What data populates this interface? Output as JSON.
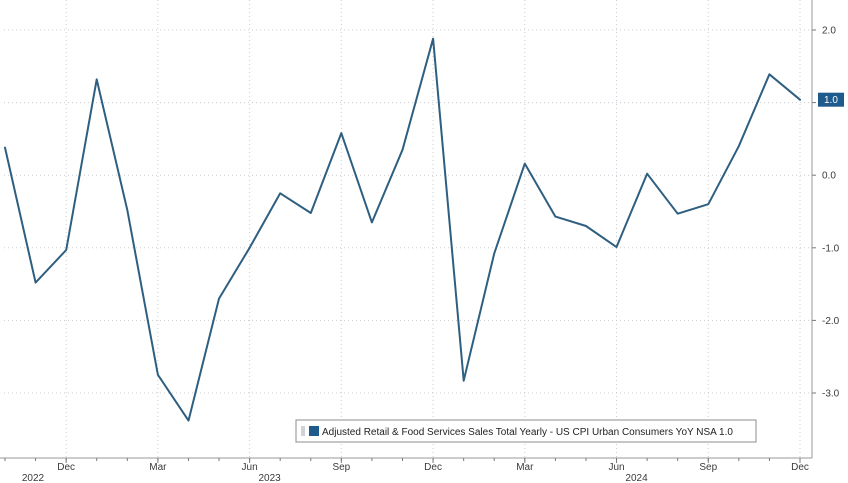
{
  "chart_data": {
    "type": "line",
    "x": [
      "2022-10",
      "2022-11",
      "2022-12",
      "2023-01",
      "2023-02",
      "2023-03",
      "2023-04",
      "2023-05",
      "2023-06",
      "2023-07",
      "2023-08",
      "2023-09",
      "2023-10",
      "2023-11",
      "2023-12",
      "2024-01",
      "2024-02",
      "2024-03",
      "2024-04",
      "2024-05",
      "2024-06",
      "2024-07",
      "2024-08",
      "2024-09",
      "2024-10",
      "2024-11",
      "2024-12"
    ],
    "series": [
      {
        "name": "Adjusted Retail & Food Services Sales Total Yearly - US CPI Urban Consumers YoY NSA",
        "values": [
          0.38,
          -1.48,
          -1.03,
          1.32,
          -0.48,
          -2.75,
          -3.38,
          -1.7,
          -1.0,
          -0.25,
          -0.52,
          0.58,
          -0.65,
          0.35,
          1.88,
          -2.83,
          -1.08,
          0.16,
          -0.57,
          -0.7,
          -0.99,
          0.02,
          -0.53,
          -0.4,
          0.4,
          1.39,
          1.04
        ]
      }
    ],
    "ylim": [
      -3.9,
      2.4
    ],
    "y_ticks": [
      2.0,
      1.0,
      0.0,
      -1.0,
      -2.0,
      -3.0
    ],
    "y_tick_labels": [
      "2.0",
      "1.0",
      "0.0",
      "-1.0",
      "-2.0",
      "-3.0"
    ],
    "x_tick_labels": [
      {
        "label": "Dec",
        "index": 2
      },
      {
        "label": "Mar",
        "index": 5
      },
      {
        "label": "Jun",
        "index": 8
      },
      {
        "label": "Sep",
        "index": 11
      },
      {
        "label": "Dec",
        "index": 14
      },
      {
        "label": "Mar",
        "index": 17
      },
      {
        "label": "Jun",
        "index": 20
      },
      {
        "label": "Sep",
        "index": 23
      },
      {
        "label": "Dec",
        "index": 26
      }
    ],
    "year_labels": [
      {
        "label": "2022",
        "index": 1
      },
      {
        "label": "2023",
        "index": 8
      },
      {
        "label": "2024",
        "index": 20
      }
    ],
    "last_value_label": "1.0",
    "legend": {
      "text": "Adjusted Retail & Food Services Sales Total Yearly - US CPI Urban Consumers YoY NSA 1.0",
      "placement": "bottom-right"
    },
    "grid": true,
    "y_axis_side": "right",
    "colors": {
      "series": "#2f5f80",
      "legend_swatch": "#1e5a8c",
      "last_label_bg": "#1e5a8c"
    }
  }
}
